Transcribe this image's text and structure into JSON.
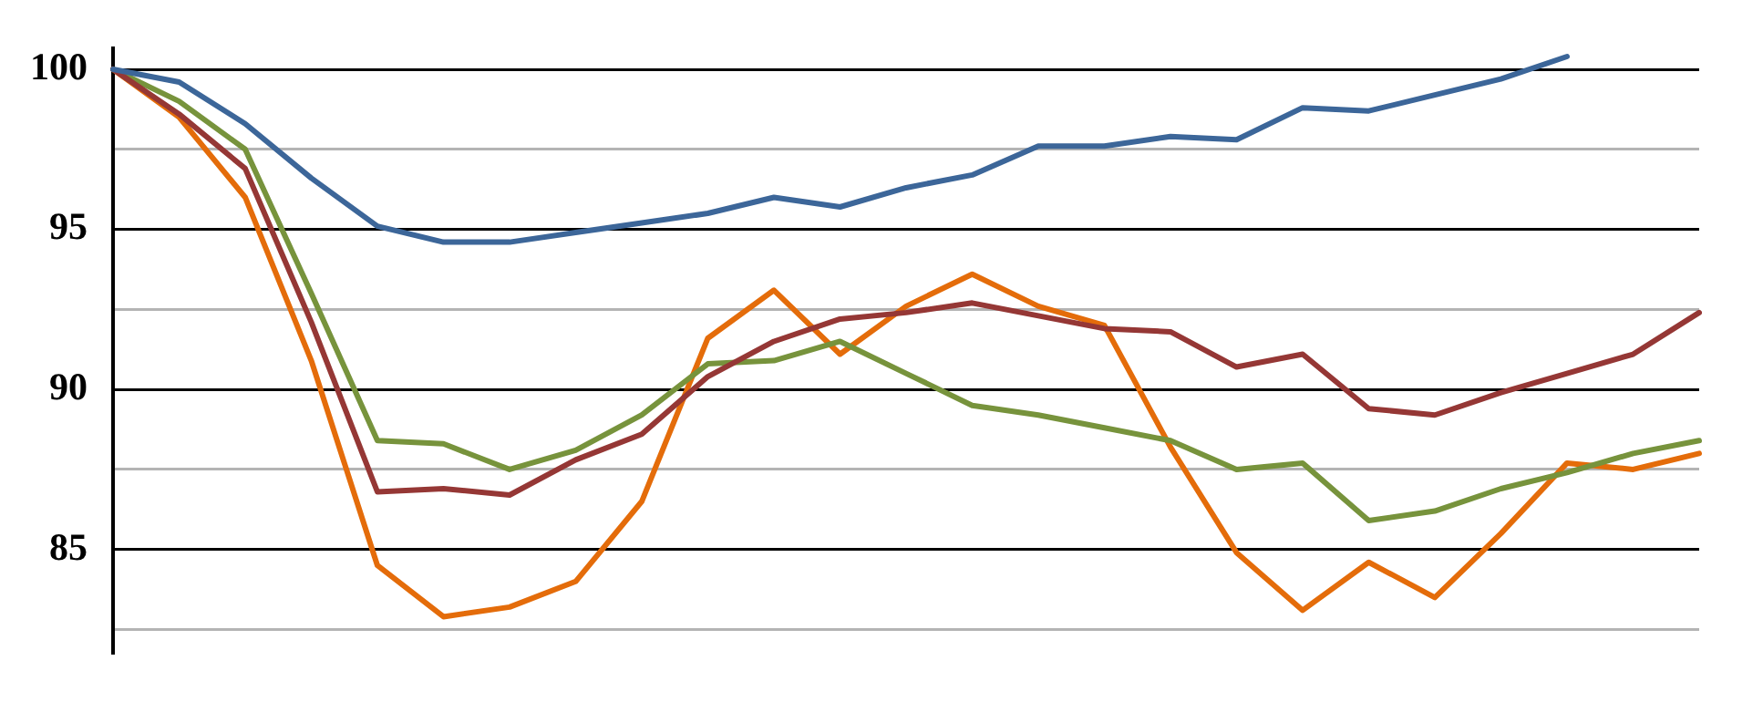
{
  "chart_data": {
    "type": "line",
    "categories": [
      null,
      null,
      null,
      null,
      null,
      null,
      null,
      null,
      null,
      null,
      null,
      null,
      null,
      null,
      null,
      null,
      null,
      null,
      null,
      null,
      null,
      null,
      null,
      null,
      null
    ],
    "series": [
      {
        "color": "#3c6699",
        "values": [
          100,
          99.6,
          98.3,
          96.6,
          95.1,
          94.6,
          94.6,
          94.9,
          95.2,
          95.5,
          96.0,
          95.7,
          96.3,
          96.7,
          97.6,
          97.6,
          97.9,
          97.8,
          98.8,
          98.7,
          99.2,
          99.7,
          100.4,
          null,
          null
        ]
      },
      {
        "color": "#953735",
        "values": [
          100,
          98.6,
          96.9,
          92.1,
          86.8,
          86.9,
          86.7,
          87.8,
          88.6,
          90.4,
          91.5,
          92.2,
          92.4,
          92.7,
          92.3,
          91.9,
          91.8,
          90.7,
          91.1,
          89.4,
          89.2,
          89.9,
          90.5,
          91.1,
          92.4
        ]
      },
      {
        "color": "#77933c",
        "values": [
          100,
          99.0,
          97.5,
          93.0,
          88.4,
          88.3,
          87.5,
          88.1,
          89.2,
          90.8,
          90.9,
          91.5,
          90.5,
          89.5,
          89.2,
          88.8,
          88.4,
          87.5,
          87.7,
          85.9,
          86.2,
          86.9,
          87.4,
          88.0,
          88.4
        ]
      },
      {
        "color": "#e46c0a",
        "values": [
          100,
          98.5,
          96.0,
          90.9,
          84.5,
          82.9,
          83.2,
          84.0,
          86.5,
          91.6,
          93.1,
          91.1,
          92.6,
          93.6,
          92.6,
          92.0,
          88.2,
          84.9,
          83.1,
          84.6,
          83.5,
          85.5,
          87.7,
          87.5,
          88.0
        ]
      }
    ],
    "ylim": [
      81.75,
      100.65
    ],
    "yticks": [
      {
        "value": 82.5,
        "label": null
      },
      85,
      {
        "value": 87.5,
        "label": null
      },
      90,
      {
        "value": 92.5,
        "label": null
      },
      95,
      {
        "value": 97.5,
        "label": null
      },
      100
    ],
    "grid": "y",
    "legend": false,
    "tick_labels": "y",
    "marker": "none",
    "line_style": "solid"
  }
}
